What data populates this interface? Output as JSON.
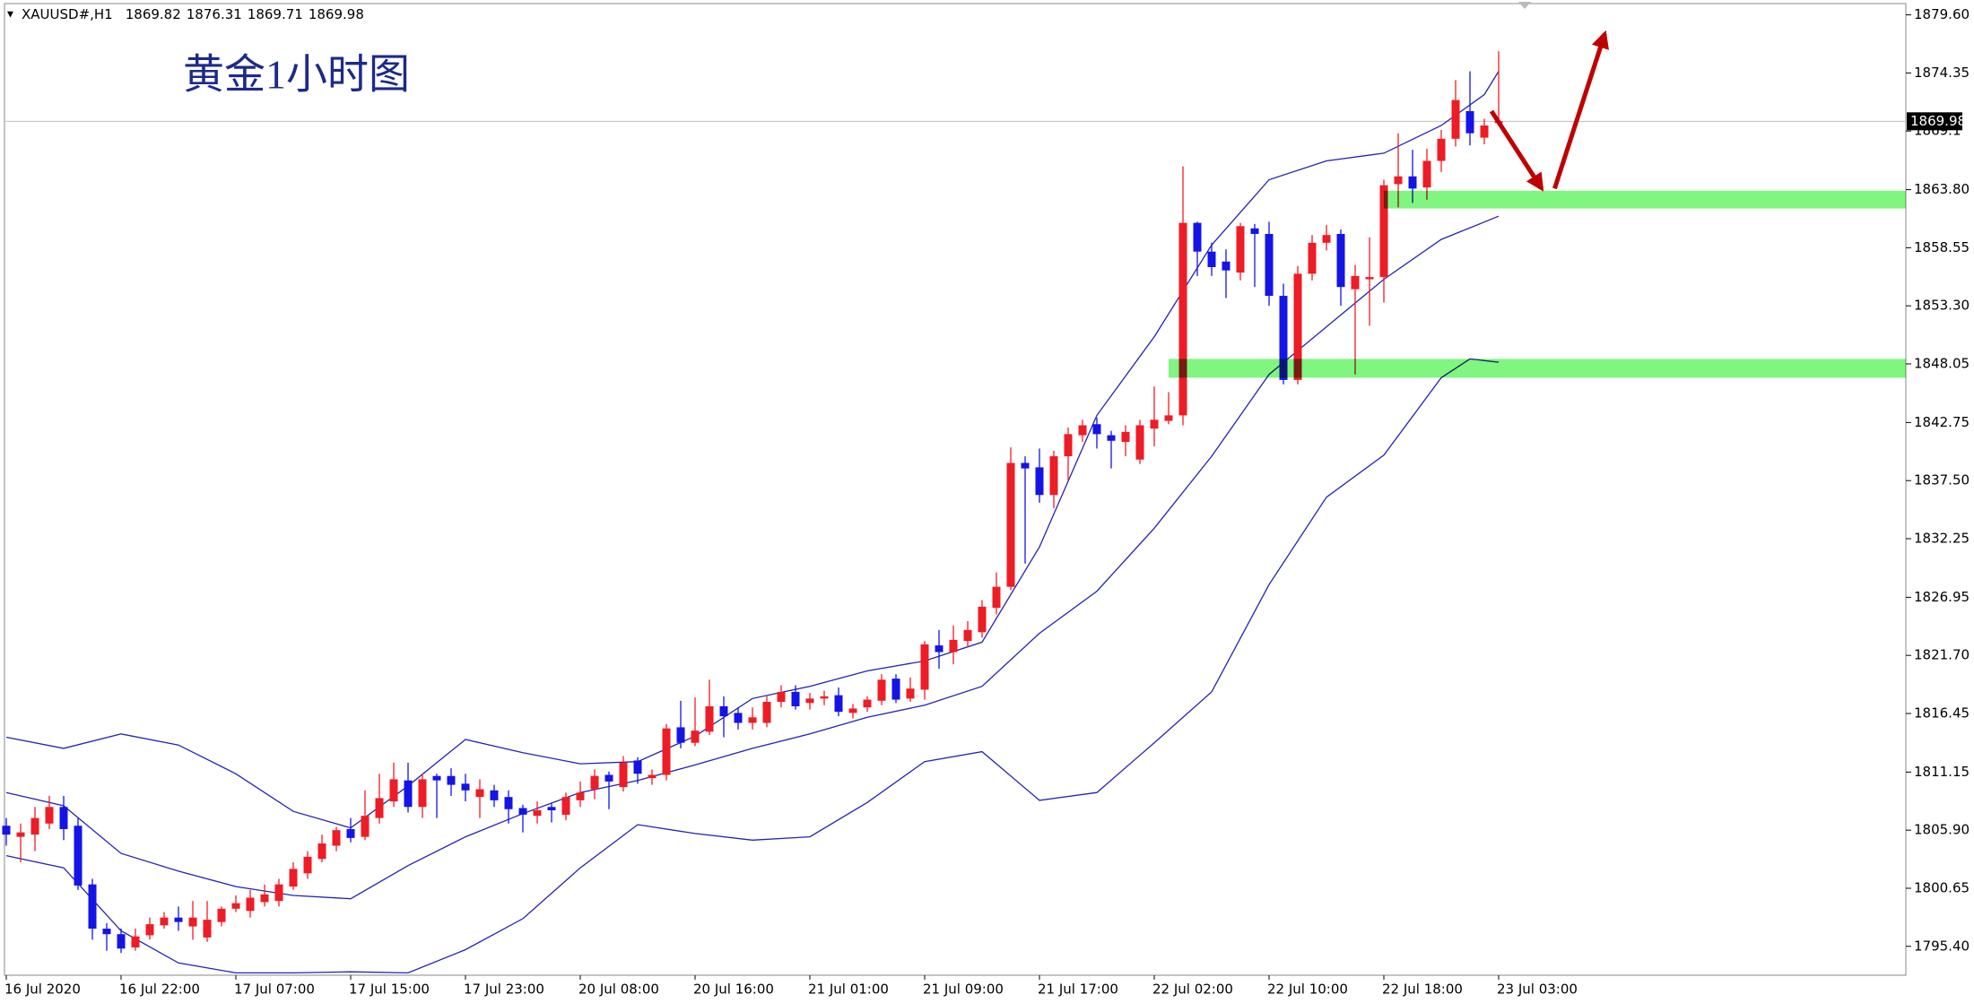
{
  "chart_data": {
    "type": "candlestick",
    "symbol": "XAUUSD#,H1",
    "title": "黄金1小时图",
    "categories": [
      "16 Jul 2020",
      null,
      null,
      null,
      null,
      null,
      null,
      null,
      "16 Jul 22:00",
      null,
      null,
      null,
      null,
      null,
      null,
      null,
      "17 Jul 07:00",
      null,
      null,
      null,
      null,
      null,
      null,
      null,
      "17 Jul 15:00",
      null,
      null,
      null,
      null,
      null,
      null,
      null,
      "17 Jul 23:00",
      null,
      null,
      null,
      null,
      null,
      null,
      null,
      "20 Jul 08:00",
      null,
      null,
      null,
      null,
      null,
      null,
      null,
      "20 Jul 16:00",
      null,
      null,
      null,
      null,
      null,
      null,
      null,
      "21 Jul 01:00",
      null,
      null,
      null,
      null,
      null,
      null,
      null,
      "21 Jul 09:00",
      null,
      null,
      null,
      null,
      null,
      null,
      null,
      "21 Jul 17:00",
      null,
      null,
      null,
      null,
      null,
      null,
      null,
      "22 Jul 02:00",
      null,
      null,
      null,
      null,
      null,
      null,
      null,
      "22 Jul 10:00",
      null,
      null,
      null,
      null,
      null,
      null,
      null,
      "22 Jul 18:00",
      null,
      null,
      null,
      null,
      null,
      null,
      null,
      "23 Jul 03:00"
    ],
    "open": [
      1806.3,
      1805.3,
      1805.5,
      1806.5,
      1808,
      1806.3,
      1801,
      1797,
      1796.5,
      1795.3,
      1796.4,
      1797.3,
      1798,
      1797.2,
      1796.2,
      1797.6,
      1798.8,
      1798.6,
      1799.4,
      1799.5,
      1800.8,
      1802,
      1803.3,
      1804.5,
      1806,
      1805.3,
      1807,
      1808.5,
      1810.4,
      1808,
      1810.8,
      1810.8,
      1810.1,
      1808.9,
      1809.5,
      1808.9,
      1807.9,
      1807.2,
      1808,
      1807.3,
      1808.6,
      1809.6,
      1810.9,
      1809.8,
      1812.2,
      1810.6,
      1810.9,
      1815.2,
      1813.8,
      1814.8,
      1817.1,
      1816.5,
      1815.6,
      1815.6,
      1817.5,
      1818.4,
      1817.4,
      1817.8,
      1818.1,
      1816.5,
      1817,
      1817.6,
      1819.6,
      1817.8,
      1818.6,
      1822.6,
      1822,
      1823,
      1823.8,
      1826,
      1827.9,
      1839.1,
      1838.7,
      1836.2,
      1839.7,
      1841.6,
      1842.6,
      1841.6,
      1841,
      1839.4,
      1842.2,
      1842.9,
      1843.4,
      1860.8,
      1858.2,
      1857.3,
      1856.3,
      1860.3,
      1859.8,
      1854.2,
      1846.6,
      1856.2,
      1859,
      1859.8,
      1854.8,
      1855.7,
      1855.9,
      1864.3,
      1865,
      1864,
      1866.4,
      1868.4,
      1870.9,
      1868.5,
      1869.82
    ],
    "high": [
      1807,
      1806.5,
      1808,
      1809,
      1809,
      1807,
      1801.5,
      1797.5,
      1797,
      1797,
      1798,
      1798.5,
      1799,
      1799.5,
      1799.5,
      1799,
      1800,
      1800.5,
      1801,
      1801.5,
      1803,
      1804,
      1805.5,
      1806.2,
      1807,
      1809.5,
      1811,
      1812,
      1812,
      1811,
      1811,
      1811.5,
      1811,
      1810.5,
      1810,
      1809.5,
      1808.2,
      1808.5,
      1808.3,
      1809.3,
      1810.3,
      1811.4,
      1811.2,
      1812.6,
      1812.5,
      1811.4,
      1815.5,
      1817.6,
      1817.9,
      1819.5,
      1818,
      1817,
      1817,
      1818,
      1819,
      1819,
      1818.3,
      1818.5,
      1818.8,
      1817.3,
      1818,
      1820,
      1820,
      1819.7,
      1823,
      1824,
      1824.4,
      1824.8,
      1826.7,
      1829.2,
      1840.5,
      1839.7,
      1840.4,
      1840.2,
      1842.3,
      1843,
      1843.2,
      1842,
      1842.5,
      1843,
      1846,
      1845.5,
      1865.9,
      1860.9,
      1859,
      1858.4,
      1860.8,
      1860.7,
      1860.9,
      1855.3,
      1856.9,
      1859.7,
      1860.6,
      1860.2,
      1857,
      1859.5,
      1864.7,
      1868.9,
      1867.4,
      1867.5,
      1869.2,
      1873.7,
      1874.5,
      1870.2,
      1876.31
    ],
    "low": [
      1804.5,
      1803,
      1804,
      1806,
      1805,
      1800.5,
      1796,
      1795,
      1794.8,
      1795,
      1796,
      1797,
      1796.8,
      1796,
      1795.8,
      1797.2,
      1798.5,
      1798,
      1799,
      1799,
      1800.5,
      1801.5,
      1803,
      1804,
      1804.8,
      1805,
      1806.5,
      1808,
      1807.5,
      1807,
      1807,
      1809,
      1808.5,
      1807,
      1808,
      1806.5,
      1805.7,
      1806.5,
      1806.6,
      1806.8,
      1808,
      1808.7,
      1807.8,
      1809.4,
      1810.1,
      1810,
      1810.4,
      1813.3,
      1813.5,
      1814.5,
      1814.3,
      1815,
      1815,
      1815.2,
      1817,
      1816.8,
      1816.8,
      1817.2,
      1816.2,
      1816,
      1816.6,
      1817.2,
      1817.4,
      1817.5,
      1817.7,
      1820.5,
      1820.9,
      1822.4,
      1823.3,
      1825.4,
      1827.6,
      1830,
      1835.5,
      1835,
      1837.5,
      1841,
      1840.4,
      1838.6,
      1839.7,
      1839,
      1840.6,
      1842.6,
      1842.5,
      1856,
      1856,
      1854,
      1855.6,
      1855,
      1853.3,
      1846.2,
      1846.2,
      1855.6,
      1858.3,
      1853.3,
      1847.1,
      1851.5,
      1853.6,
      1862.2,
      1862.6,
      1862.9,
      1865.4,
      1867.7,
      1867.8,
      1867.9,
      1869.71
    ],
    "close": [
      1805.5,
      1805.7,
      1807,
      1808,
      1806,
      1800.9,
      1797,
      1796.5,
      1795.2,
      1796.3,
      1797.4,
      1798,
      1797.6,
      1798,
      1797.8,
      1798.8,
      1799.3,
      1799.8,
      1800.1,
      1801,
      1802.4,
      1803.5,
      1804.7,
      1805.9,
      1805.2,
      1807.2,
      1808.8,
      1810.5,
      1808,
      1810.5,
      1810.4,
      1810,
      1809.5,
      1809.6,
      1808.6,
      1807.8,
      1807.3,
      1807.7,
      1807.7,
      1808.9,
      1809.3,
      1810.8,
      1810.3,
      1812,
      1811,
      1810.9,
      1815.1,
      1813.8,
      1814.9,
      1817.1,
      1816.2,
      1815.6,
      1816.1,
      1817.5,
      1818.4,
      1817.1,
      1817.8,
      1818,
      1816.6,
      1816.9,
      1817.7,
      1819.5,
      1817.7,
      1818.7,
      1822.7,
      1822,
      1823.1,
      1824,
      1826.1,
      1827.9,
      1839.1,
      1838.6,
      1836.2,
      1839.7,
      1841.7,
      1842.5,
      1841.7,
      1841.1,
      1841.9,
      1842.5,
      1843,
      1843.4,
      1860.8,
      1858.2,
      1856.8,
      1856.5,
      1860.5,
      1859.8,
      1854.2,
      1846.6,
      1856.2,
      1859,
      1859.7,
      1855,
      1856,
      1855.9,
      1864.2,
      1865,
      1863.9,
      1866.4,
      1868.4,
      1871.9,
      1868.9,
      1869.6,
      1869.98
    ],
    "up_color": "#ee1c25",
    "down_color": "#1414e6",
    "bands": [
      {
        "color": "#2323b4",
        "x": [
          0,
          4,
          8,
          12,
          16,
          20,
          24,
          28,
          32,
          36,
          40,
          44,
          48,
          52,
          56,
          60,
          64,
          68,
          72,
          76,
          80,
          84,
          88,
          92,
          96,
          100,
          103,
          104
        ],
        "values": [
          1814.3,
          1813.3,
          1814.6,
          1813.6,
          1811.0,
          1807.6,
          1806.1,
          1809.9,
          1814.1,
          1812.9,
          1811.9,
          1812.1,
          1814.4,
          1817.8,
          1818.9,
          1820.3,
          1821.2,
          1822.9,
          1831.5,
          1843.4,
          1850.5,
          1858.8,
          1864.7,
          1866.4,
          1867.1,
          1869.6,
          1872.4,
          1874.5
        ]
      },
      {
        "color": "#2323b4",
        "x": [
          0,
          4,
          8,
          12,
          16,
          20,
          24,
          28,
          32,
          36,
          40,
          44,
          48,
          52,
          56,
          60,
          64,
          68,
          72,
          76,
          80,
          84,
          88,
          92,
          96,
          100,
          104
        ],
        "values": [
          1809.3,
          1808.1,
          1803.8,
          1802.2,
          1800.8,
          1800.0,
          1799.7,
          1802.7,
          1805.3,
          1807.4,
          1809.3,
          1810.4,
          1811.8,
          1813.3,
          1814.6,
          1816.1,
          1817.2,
          1818.9,
          1823.7,
          1827.5,
          1833.2,
          1839.7,
          1847.1,
          1851.4,
          1855.7,
          1859.3,
          1861.4
        ]
      },
      {
        "color": "#2323b4",
        "x": [
          0,
          4,
          8,
          12,
          16,
          20,
          24,
          28,
          32,
          36,
          40,
          44,
          48,
          52,
          56,
          60,
          64,
          68,
          72,
          76,
          80,
          84,
          88,
          92,
          96,
          100,
          102,
          104
        ],
        "values": [
          1803.6,
          1802.5,
          1796.8,
          1793.9,
          1793.0,
          1793.0,
          1793.1,
          1793.0,
          1795.1,
          1797.9,
          1802.5,
          1806.4,
          1805.6,
          1805.0,
          1805.3,
          1808.4,
          1812.1,
          1813.0,
          1808.6,
          1809.3,
          1813.8,
          1818.4,
          1828.1,
          1836.0,
          1839.8,
          1846.8,
          1848.5,
          1848.2
        ]
      }
    ],
    "zones": [
      {
        "x_start": 96,
        "low": 1862.1,
        "high": 1863.7
      },
      {
        "x_start": 81,
        "low": 1846.8,
        "high": 1848.5
      }
    ],
    "zone_color": "#80f580",
    "arrows": [
      {
        "x": [
          103.5,
          107
        ],
        "y": [
          1870.9,
          1863.9
        ]
      },
      {
        "x": [
          107.9,
          111.4
        ],
        "y": [
          1863.9,
          1877.9
        ]
      }
    ],
    "arrow_color": "#c00000",
    "ylim": [
      1792.79,
      1880.62
    ],
    "yticks": [
      {
        "value": 1795.4,
        "label": "1795.40"
      },
      1800.65,
      {
        "value": 1805.9,
        "label": "1805.90"
      },
      1811.15,
      1816.45,
      {
        "value": 1821.7,
        "label": "1821.70"
      },
      1826.95,
      1832.25,
      {
        "value": 1837.5,
        "label": "1837.50"
      },
      1842.75,
      1848.05,
      {
        "value": 1853.3,
        "label": "1853.30"
      },
      1858.55,
      {
        "value": 1863.8,
        "label": "1863.80"
      },
      1869.1,
      1874.35,
      {
        "value": 1879.6,
        "label": "1879.60"
      }
    ],
    "grid": false
  }
}
